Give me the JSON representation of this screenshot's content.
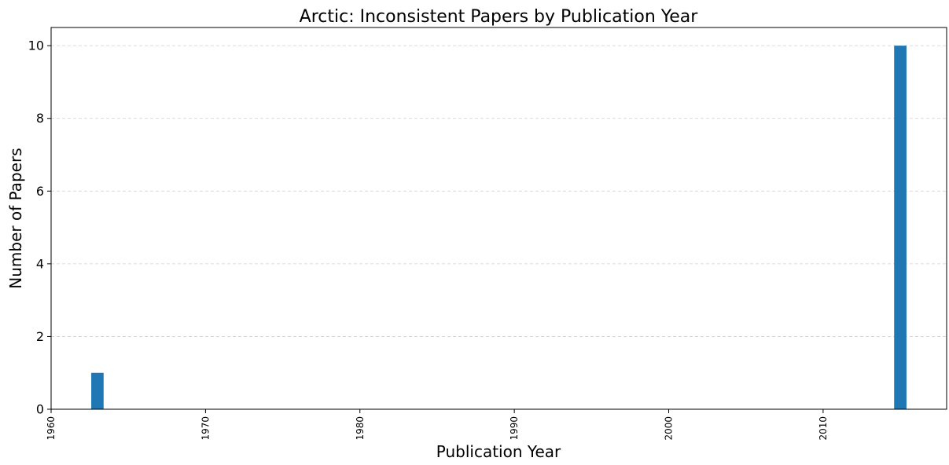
{
  "chart_data": {
    "type": "bar",
    "title": "Arctic: Inconsistent Papers by Publication Year",
    "xlabel": "Publication Year",
    "ylabel": "Number of Papers",
    "x": [
      1963,
      2015
    ],
    "values": [
      1,
      10
    ],
    "xlim": [
      1960,
      2018
    ],
    "ylim": [
      0,
      10.5
    ],
    "xticks": [
      1960,
      1970,
      1980,
      1990,
      2000,
      2010
    ],
    "yticks": [
      0,
      2,
      4,
      6,
      8,
      10
    ],
    "bar_color": "#1f77b4",
    "grid": "y-dashed",
    "legend": "none"
  }
}
